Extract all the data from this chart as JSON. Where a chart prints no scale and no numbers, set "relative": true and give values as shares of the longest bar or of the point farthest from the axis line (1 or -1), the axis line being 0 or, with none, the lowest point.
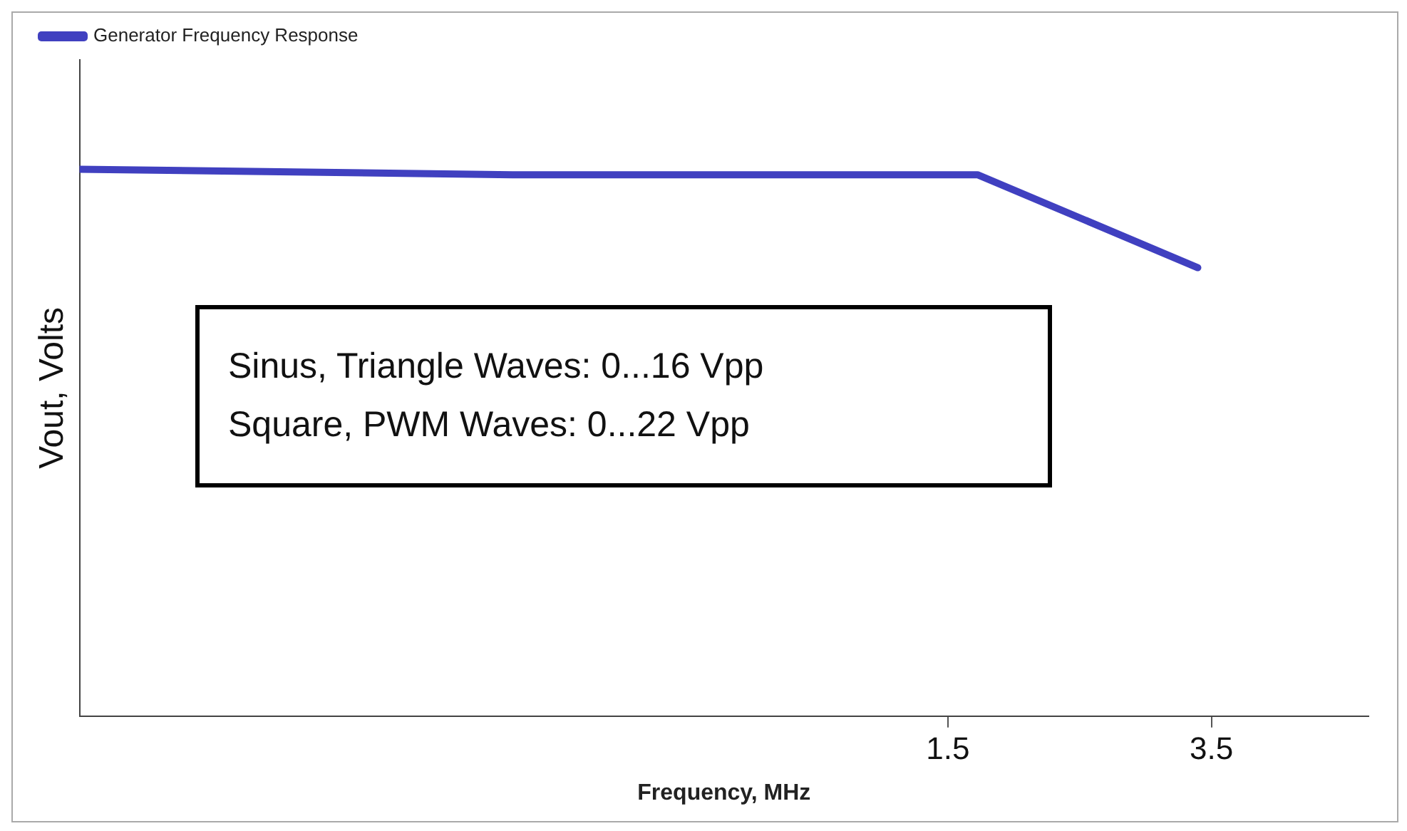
{
  "chart_data": {
    "type": "line",
    "xlabel": "Frequency, MHz",
    "ylabel": "Vout, Volts",
    "relative": true,
    "log": "x",
    "xlim": [
      0.092,
      5.8
    ],
    "xticks": [
      1.5,
      3.5
    ],
    "legend": "top left",
    "grid": false,
    "line_style": "solid",
    "marker": "none",
    "annotations": [
      "Sinus, Triangle Waves: 0...16 Vpp",
      "Square, PWM Waves: 0...22 Vpp"
    ],
    "series": [
      {
        "name": "Generator Frequency Response",
        "color": "#4040c0",
        "x": [
          0.092,
          0.37,
          1.65,
          3.35
        ],
        "values": [
          1,
          0.99,
          0.99,
          0.82
        ]
      }
    ]
  }
}
